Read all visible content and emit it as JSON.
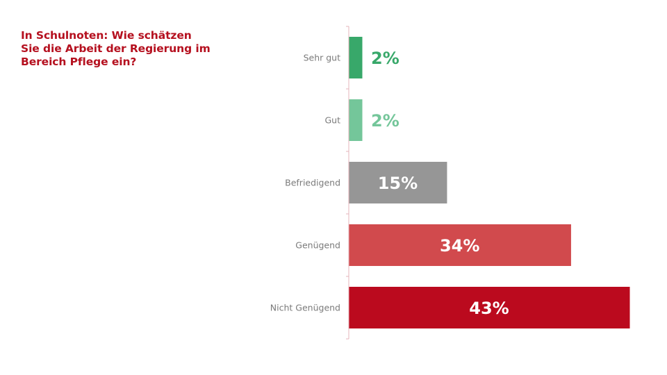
{
  "title_lines": [
    "In Schulnoten: Wie schätzen",
    "Sie die Arbeit der Regierung im",
    "Bereich Pflege ein?"
  ],
  "chart_data": {
    "type": "bar",
    "orientation": "horizontal",
    "categories": [
      "Sehr gut",
      "Gut",
      "Befriedigend",
      "Genügend",
      "Nicht Genügend"
    ],
    "values": [
      2,
      2,
      15,
      34,
      43
    ],
    "value_labels": [
      "2%",
      "2%",
      "15%",
      "34%",
      "43%"
    ],
    "unit": "%",
    "xlim": [
      0,
      43
    ],
    "bar_colors": [
      "#38a86a",
      "#74c69a",
      "#969696",
      "#d14a4d",
      "#bb0a1e"
    ],
    "label_colors": [
      "#38a86a",
      "#74c69a",
      "#ffffff",
      "#ffffff",
      "#ffffff"
    ],
    "axis_color": "#e4b4bb",
    "grid": false,
    "legend": "none"
  }
}
